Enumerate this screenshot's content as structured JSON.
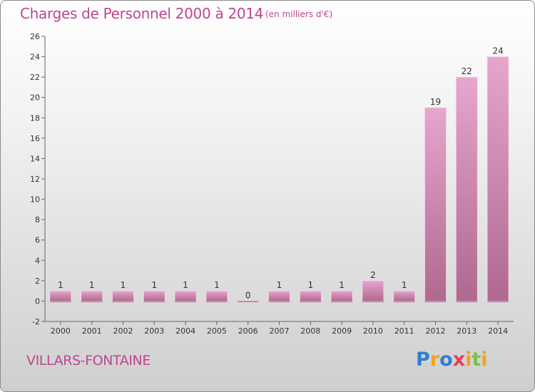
{
  "chart_title": "Charges de Personnel 2000 à 2014",
  "chart_subtitle": "(en milliers d'€)",
  "commune": "VILLARS-FONTAINE",
  "logo": {
    "text": "Proxiti",
    "letters": [
      {
        "ch": "P",
        "color": "#2f7fd0"
      },
      {
        "ch": "r",
        "color": "#f3a21b"
      },
      {
        "ch": "o",
        "color": "#2f7fd0"
      },
      {
        "ch": "x",
        "color": "#e83d57"
      },
      {
        "ch": "i",
        "color": "#f3a21b"
      },
      {
        "ch": "t",
        "color": "#7cc243"
      },
      {
        "ch": "i",
        "color": "#f3a21b"
      }
    ]
  },
  "chart_data": {
    "type": "bar",
    "title": "Charges de Personnel 2000 à 2014",
    "subtitle": "(en milliers d'€)",
    "xlabel": "",
    "ylabel": "",
    "categories": [
      "2000",
      "2001",
      "2002",
      "2003",
      "2004",
      "2005",
      "2006",
      "2007",
      "2008",
      "2009",
      "2010",
      "2011",
      "2012",
      "2013",
      "2014"
    ],
    "values": [
      1,
      1,
      1,
      1,
      1,
      1,
      0,
      1,
      1,
      1,
      2,
      1,
      19,
      22,
      24
    ],
    "ylim": [
      -2,
      26
    ],
    "yticks": [
      -2,
      0,
      2,
      4,
      6,
      8,
      10,
      12,
      14,
      16,
      18,
      20,
      22,
      24,
      26
    ],
    "grid": false,
    "bar_color": "#c979a8",
    "text_color": "#c0458f"
  }
}
